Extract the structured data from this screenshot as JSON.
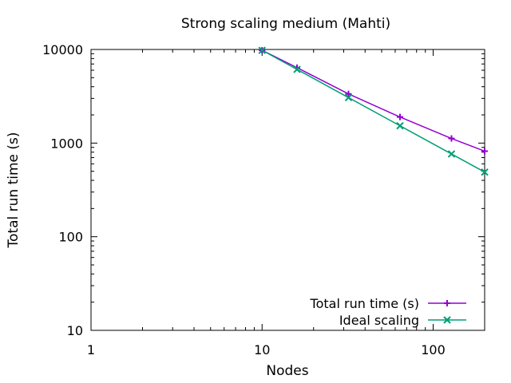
{
  "chart_data": {
    "type": "line",
    "title": "Strong scaling medium (Mahti)",
    "xlabel": "Nodes",
    "ylabel": "Total run time (s)",
    "x_scale": "log",
    "y_scale": "log",
    "xlim": [
      1,
      200
    ],
    "ylim": [
      10,
      10000
    ],
    "x_ticks": [
      1,
      10,
      100
    ],
    "x_tick_labels": [
      "1",
      "10",
      "100"
    ],
    "y_ticks": [
      10,
      100,
      1000,
      10000
    ],
    "y_tick_labels": [
      "10",
      "100",
      "1000",
      "10000"
    ],
    "grid": false,
    "legend_position": "bottom-right",
    "series": [
      {
        "name": "Total run time (s)",
        "color": "#9400d3",
        "marker": "plus",
        "x": [
          10,
          16,
          32,
          64,
          128,
          200
        ],
        "y": [
          9800,
          6400,
          3350,
          1900,
          1120,
          820
        ]
      },
      {
        "name": "Ideal scaling",
        "color": "#009e73",
        "marker": "cross",
        "x": [
          10,
          16,
          32,
          64,
          128,
          200
        ],
        "y": [
          9800,
          6125,
          3063,
          1531,
          766,
          490
        ]
      }
    ]
  }
}
